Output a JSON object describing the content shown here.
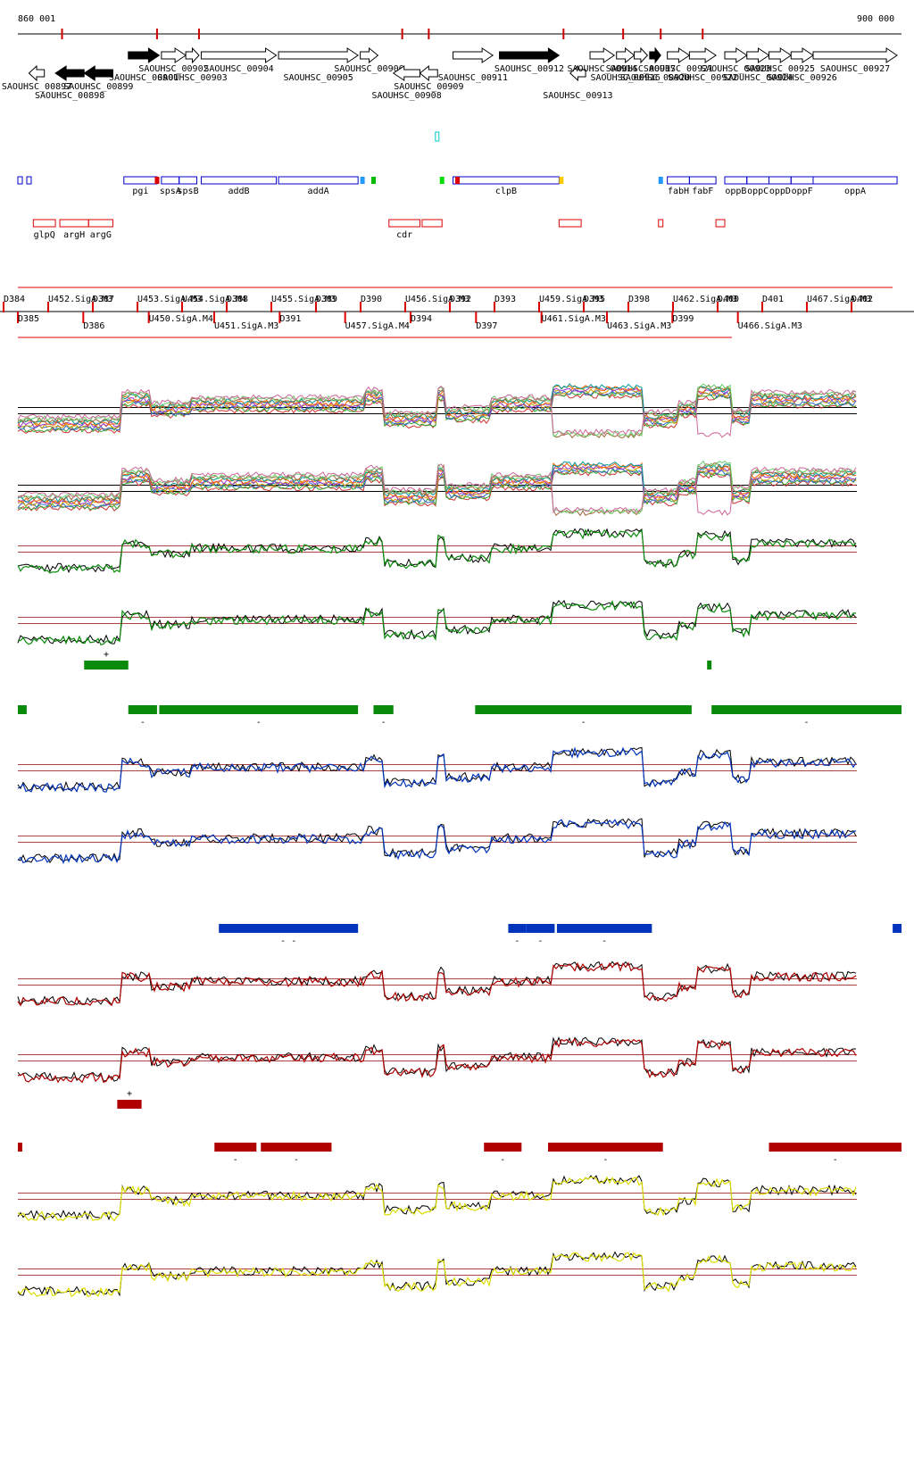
{
  "coords": {
    "start": "860 001",
    "end": "900 000"
  },
  "colors": {
    "red": "#cc0000",
    "green": "#0a8a0a",
    "blue": "#0033bb",
    "darkred": "#b00000",
    "yellow": "#dddd00",
    "black": "#000000",
    "box_blue": "#0000cc",
    "box_red": "#dd0000",
    "cyan": "#00cccc"
  },
  "genes": [
    {
      "label": "SAOUHSC_00897",
      "start": 860500,
      "end": 861200,
      "strand": "-",
      "filled": false
    },
    {
      "label": "SAOUHSC_00898",
      "start": 861700,
      "end": 863000,
      "strand": "-",
      "filled": true
    },
    {
      "label": "SAOUHSC_00899",
      "start": 863000,
      "end": 864300,
      "strand": "-",
      "filled": true
    },
    {
      "label": "SAOUHSC_00901",
      "start": 865000,
      "end": 866400,
      "strand": "+",
      "filled": true
    },
    {
      "label": "SAOUHSC_00902",
      "start": 866500,
      "end": 867600,
      "strand": "+",
      "filled": false
    },
    {
      "label": "SAOUHSC_00903",
      "start": 867600,
      "end": 868200,
      "strand": "+",
      "filled": false
    },
    {
      "label": "SAOUHSC_00904",
      "start": 868300,
      "end": 871700,
      "strand": "+",
      "filled": false
    },
    {
      "label": "SAOUHSC_00905",
      "start": 871800,
      "end": 875400,
      "strand": "+",
      "filled": false
    },
    {
      "label": "SAOUHSC_00906",
      "start": 875500,
      "end": 876300,
      "strand": "+",
      "filled": false
    },
    {
      "label": "SAOUHSC_00908",
      "start": 877000,
      "end": 878200,
      "strand": "-",
      "filled": false
    },
    {
      "label": "SAOUHSC_00909",
      "start": 878200,
      "end": 879000,
      "strand": "-",
      "filled": false
    },
    {
      "label": "SAOUHSC_00911",
      "start": 879700,
      "end": 881500,
      "strand": "+",
      "filled": false
    },
    {
      "label": "SAOUHSC_00912",
      "start": 881800,
      "end": 884500,
      "strand": "+",
      "filled": true
    },
    {
      "label": "SAOUHSC_00913",
      "start": 885000,
      "end": 885700,
      "strand": "-",
      "filled": false
    },
    {
      "label": "SAOUHSC_00914",
      "start": 885900,
      "end": 887000,
      "strand": "+",
      "filled": false
    },
    {
      "label": "SAOUHSC_00916",
      "start": 887100,
      "end": 887900,
      "strand": "+",
      "filled": false
    },
    {
      "label": "SAOUHSC_00917",
      "start": 887900,
      "end": 888500,
      "strand": "+",
      "filled": false
    },
    {
      "label": "SAOUHSC_00920",
      "start": 888600,
      "end": 889100,
      "strand": "+",
      "filled": true
    },
    {
      "label": "SAOUHSC_00921",
      "start": 889400,
      "end": 890400,
      "strand": "+",
      "filled": false
    },
    {
      "label": "SAOUHSC_00922",
      "start": 890400,
      "end": 891600,
      "strand": "+",
      "filled": false
    },
    {
      "label": "SAOUHSC_00923",
      "start": 892000,
      "end": 893000,
      "strand": "+",
      "filled": false
    },
    {
      "label": "SAOUHSC_00924",
      "start": 893000,
      "end": 894000,
      "strand": "+",
      "filled": false
    },
    {
      "label": "SAOUHSC_00925",
      "start": 894000,
      "end": 895000,
      "strand": "+",
      "filled": false
    },
    {
      "label": "SAOUHSC_00926",
      "start": 895000,
      "end": 896000,
      "strand": "+",
      "filled": false
    },
    {
      "label": "SAOUHSC_00927",
      "start": 896000,
      "end": 899800,
      "strand": "+",
      "filled": false
    }
  ],
  "operons": [
    {
      "label": "pgi",
      "start": 864800,
      "end": 866300
    },
    {
      "label": "spsA",
      "start": 866500,
      "end": 867300
    },
    {
      "label": "spsB",
      "start": 867300,
      "end": 868100
    },
    {
      "label": "addB",
      "start": 868300,
      "end": 871700
    },
    {
      "label": "addA",
      "start": 871800,
      "end": 875400
    },
    {
      "label": "clpB",
      "start": 879700,
      "end": 884500
    },
    {
      "label": "fabH",
      "start": 889400,
      "end": 890400
    },
    {
      "label": "fabF",
      "start": 890400,
      "end": 891600
    },
    {
      "label": "oppB",
      "start": 892000,
      "end": 893000
    },
    {
      "label": "oppC",
      "start": 893000,
      "end": 894000
    },
    {
      "label": "oppD",
      "start": 894000,
      "end": 895000
    },
    {
      "label": "oppF",
      "start": 895000,
      "end": 896000
    },
    {
      "label": "oppA",
      "start": 896000,
      "end": 899800
    }
  ],
  "red_boxes": [
    {
      "label": "glpQ",
      "start": 860700,
      "end": 861700
    },
    {
      "label": "argH",
      "start": 861900,
      "end": 863200
    },
    {
      "label": "argG",
      "start": 863200,
      "end": 864300
    },
    {
      "label": "cdr",
      "start": 876800,
      "end": 878200
    },
    {
      "label": "",
      "start": 878300,
      "end": 879200
    },
    {
      "label": "",
      "start": 884500,
      "end": 885500
    },
    {
      "label": "",
      "start": 889000,
      "end": 889200
    },
    {
      "label": "",
      "start": 891600,
      "end": 892000
    }
  ],
  "upper_labels": [
    "D384",
    "U452.SigA.M3",
    "D387",
    "U453.SigA.M3",
    "U454.SigA.M4",
    "D388",
    "U455.SigA.M3",
    "D389",
    "D390",
    "U456.SigA.M3",
    "D392",
    "D393",
    "U459.SigA.M3",
    "D395",
    "D398",
    "U462.SigA.M3",
    "D400",
    "D401",
    "U467.SigA.M3",
    "D402"
  ],
  "lower_labels": [
    "D385",
    "D386",
    "U450.SigA.M4",
    "U451.SigA.M3",
    "D391",
    "U457.SigA.M4",
    "D394",
    "D397",
    "U461.SigA.M3",
    "U463.SigA.M3",
    "D399",
    "U466.SigA.M3"
  ],
  "segment_tracks": [
    {
      "color_key": "green",
      "bars": [
        {
          "start": 863000,
          "end": 865000,
          "sign": "+"
        },
        {
          "start": 891200,
          "end": 891400,
          "sign": ""
        }
      ]
    },
    {
      "color_key": "green",
      "bars": [
        {
          "start": 860000,
          "end": 860400,
          "sign": ""
        },
        {
          "start": 865000,
          "end": 866300,
          "sign": "-"
        },
        {
          "start": 866400,
          "end": 875400,
          "sign": "-"
        },
        {
          "start": 876100,
          "end": 877000,
          "sign": "-"
        },
        {
          "start": 880700,
          "end": 890500,
          "sign": "-"
        },
        {
          "start": 891400,
          "end": 900000,
          "sign": "-"
        }
      ]
    },
    {
      "color_key": "blue",
      "bars": [
        {
          "start": 869100,
          "end": 875400,
          "sign": "- -"
        },
        {
          "start": 882200,
          "end": 883000,
          "sign": "-"
        },
        {
          "start": 883000,
          "end": 884300,
          "sign": "-"
        },
        {
          "start": 884400,
          "end": 888700,
          "sign": "-"
        },
        {
          "start": 899600,
          "end": 900000,
          "sign": ""
        }
      ]
    },
    {
      "color_key": "darkred",
      "bars": [
        {
          "start": 864500,
          "end": 865600,
          "sign": "+"
        }
      ]
    },
    {
      "color_key": "darkred",
      "bars": [
        {
          "start": 860000,
          "end": 860200,
          "sign": ""
        },
        {
          "start": 868900,
          "end": 870800,
          "sign": "-"
        },
        {
          "start": 871000,
          "end": 874200,
          "sign": "-"
        },
        {
          "start": 881100,
          "end": 882800,
          "sign": "-"
        },
        {
          "start": 884000,
          "end": 889200,
          "sign": "-"
        },
        {
          "start": 894000,
          "end": 900000,
          "sign": "-"
        }
      ]
    }
  ],
  "signal_tracks": [
    {
      "kind": "multi"
    },
    {
      "kind": "multi"
    },
    {
      "kind": "pair",
      "color_key": "green"
    },
    {
      "kind": "pair",
      "color_key": "green"
    },
    {
      "kind": "pair",
      "color_key": "blue"
    },
    {
      "kind": "pair",
      "color_key": "blue"
    },
    {
      "kind": "pair",
      "color_key": "darkred"
    },
    {
      "kind": "pair",
      "color_key": "darkred"
    },
    {
      "kind": "pair",
      "color_key": "yellow"
    },
    {
      "kind": "pair",
      "color_key": "yellow"
    }
  ]
}
